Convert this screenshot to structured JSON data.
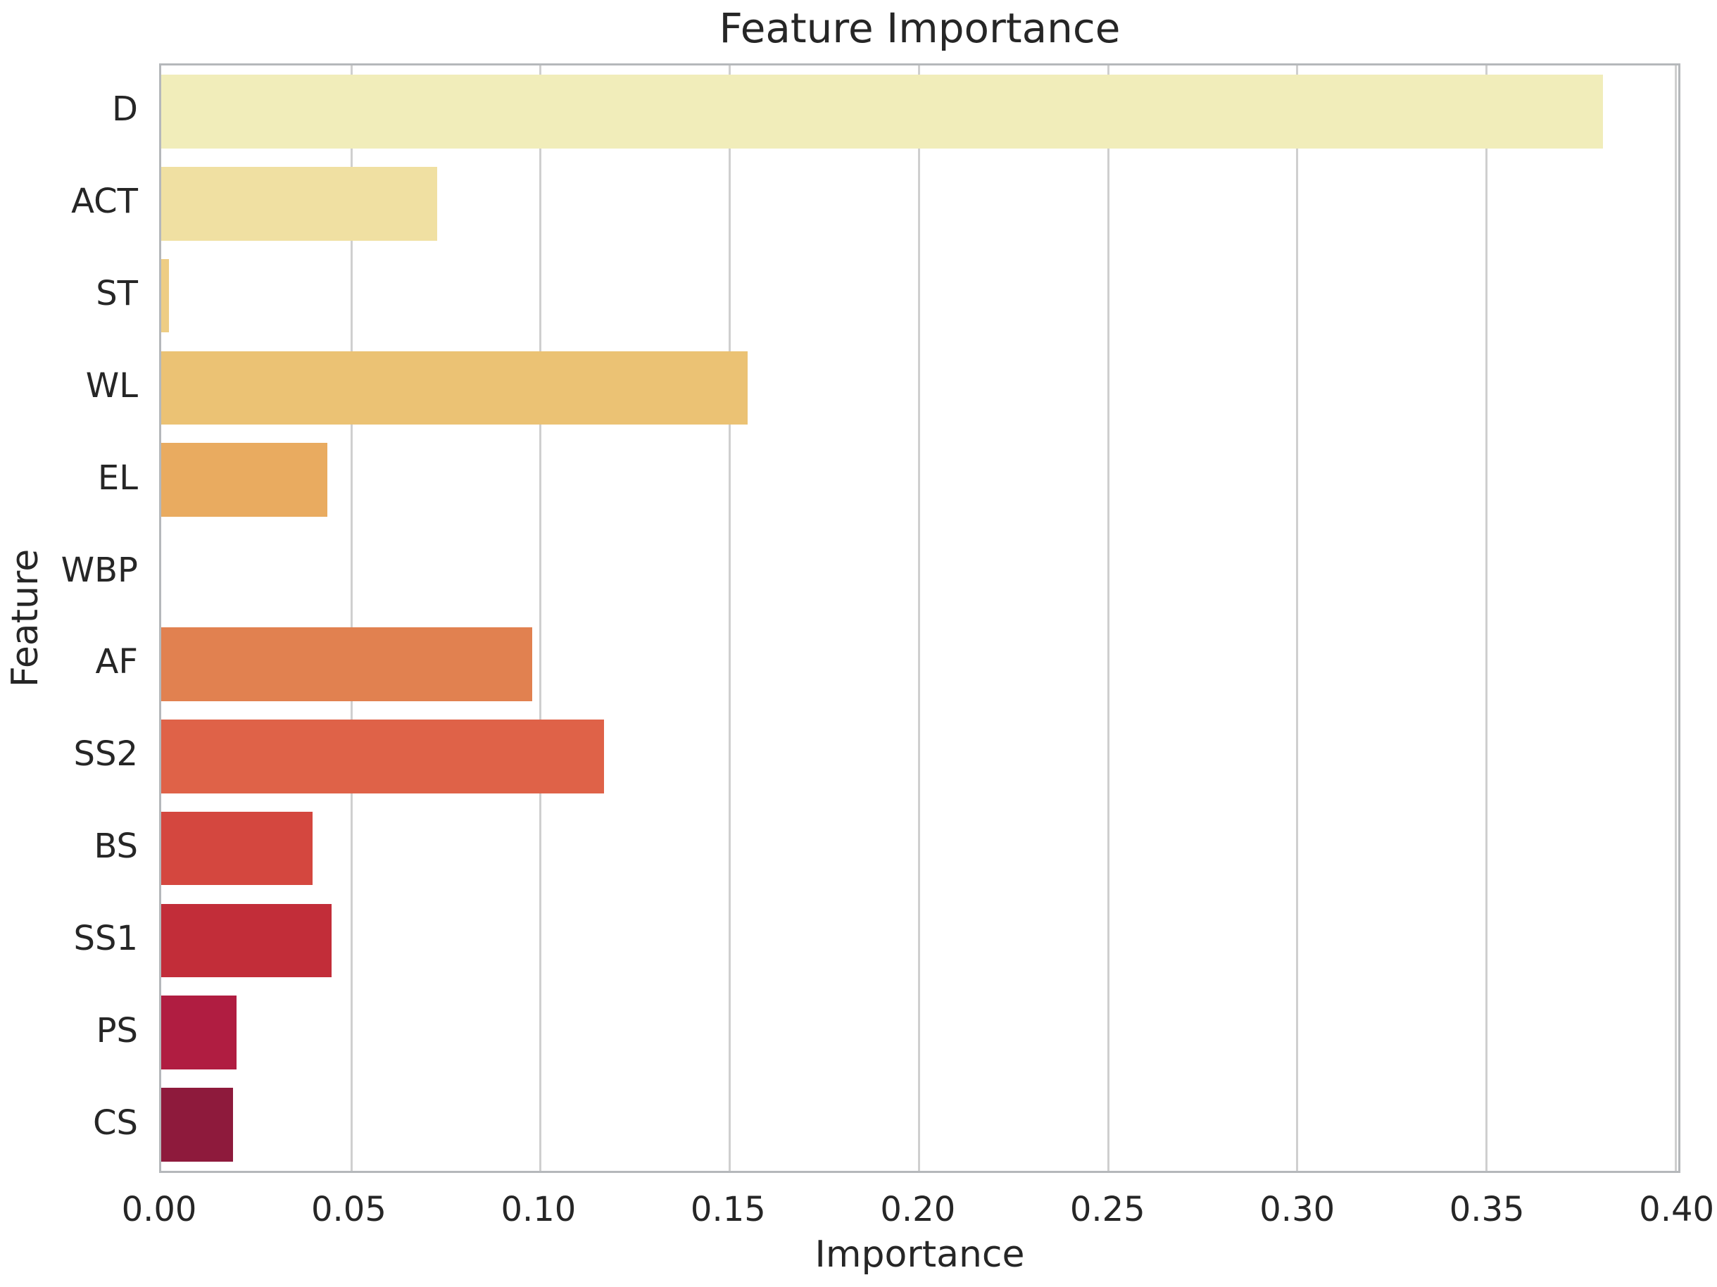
{
  "chart_data": {
    "type": "bar",
    "orientation": "horizontal",
    "title": "Feature Importance",
    "xlabel": "Importance",
    "ylabel": "Feature",
    "categories": [
      "D",
      "ACT",
      "ST",
      "WL",
      "EL",
      "WBP",
      "AF",
      "SS2",
      "BS",
      "SS1",
      "PS",
      "CS"
    ],
    "values": [
      0.381,
      0.073,
      0.002,
      0.155,
      0.044,
      0.0,
      0.098,
      0.117,
      0.04,
      0.045,
      0.02,
      0.019
    ],
    "bar_colors": [
      "#f1edba",
      "#f0e0a2",
      "#eecd84",
      "#ebc274",
      "#e9ab60",
      "#e59a57",
      "#e18150",
      "#df6248",
      "#d4473f",
      "#c22d39",
      "#b01d41",
      "#8e1a3c"
    ],
    "xlim": [
      0,
      0.401
    ],
    "x_ticks": [
      0.0,
      0.05,
      0.1,
      0.15,
      0.2,
      0.25,
      0.3,
      0.35,
      0.4
    ],
    "x_tick_labels": [
      "0.00",
      "0.05",
      "0.10",
      "0.15",
      "0.20",
      "0.25",
      "0.30",
      "0.35",
      "0.40"
    ],
    "grid": "vertical-gridlines-on",
    "legend": "none",
    "palette_name": "YlOrRd",
    "bar_width_fraction": 0.8
  },
  "colors": {
    "background": "#ffffff",
    "grid": "#cfcfcf",
    "spine": "#b5b8bb",
    "text": "#262626"
  }
}
